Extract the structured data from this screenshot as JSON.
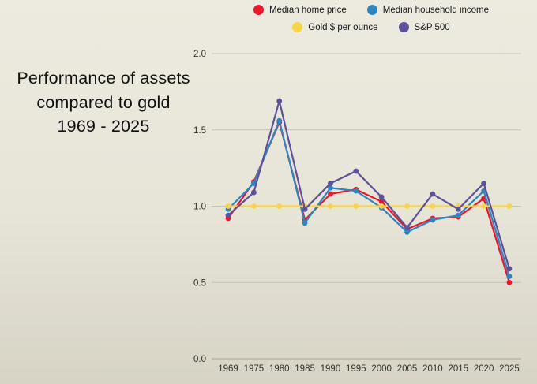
{
  "title": {
    "line1": "Performance of assets",
    "line2": "compared to gold",
    "line3": "1969 - 2025"
  },
  "colors": {
    "background_top": "#edeadf",
    "background_bottom": "#d7d4c6",
    "gridline": "#c6c3b7",
    "axis_line": "#a9a69a",
    "tick_text": "#33332e"
  },
  "chart_data": {
    "type": "line",
    "title": "Performance of assets compared to gold 1969 - 2025",
    "xlabel": "",
    "ylabel": "",
    "categories": [
      "1969",
      "1975",
      "1980",
      "1985",
      "1990",
      "1995",
      "2000",
      "2005",
      "2010",
      "2015",
      "2020",
      "2025"
    ],
    "ylim": [
      0.0,
      2.0
    ],
    "yticks": [
      "0.0",
      "0.5",
      "1.0",
      "1.5",
      "2.0"
    ],
    "grid": "horizontal",
    "legend_position": "top",
    "series": [
      {
        "name": "Median home price",
        "color": "#e8192c",
        "marker": "circle",
        "values": [
          0.92,
          1.16,
          1.55,
          0.91,
          1.08,
          1.11,
          1.03,
          0.85,
          0.92,
          0.93,
          1.05,
          0.5
        ]
      },
      {
        "name": "Median household income",
        "color": "#2e86c1",
        "marker": "circle",
        "values": [
          0.98,
          1.15,
          1.56,
          0.89,
          1.12,
          1.1,
          0.99,
          0.83,
          0.91,
          0.94,
          1.1,
          0.54
        ]
      },
      {
        "name": "Gold $ per ounce",
        "color": "#f6d44c",
        "marker": "circle",
        "values": [
          1.0,
          1.0,
          1.0,
          1.0,
          1.0,
          1.0,
          1.0,
          1.0,
          1.0,
          1.0,
          1.0,
          1.0
        ]
      },
      {
        "name": "S&P 500",
        "color": "#5d5199",
        "marker": "circle",
        "values": [
          0.94,
          1.09,
          1.69,
          0.98,
          1.15,
          1.23,
          1.06,
          0.86,
          1.08,
          0.98,
          1.15,
          0.59
        ]
      }
    ]
  }
}
